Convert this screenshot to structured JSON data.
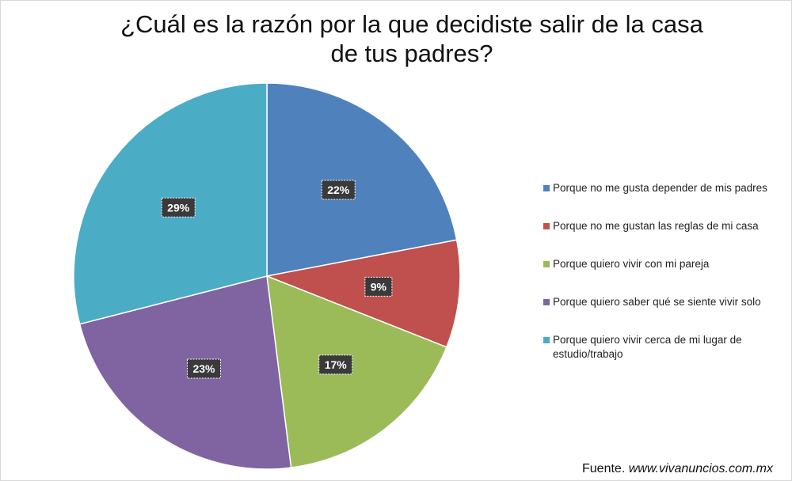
{
  "chart_data": {
    "type": "pie",
    "title_lines": [
      "¿Cuál es la razón por la que decidiste salir de la casa",
      "de tus padres?"
    ],
    "slices": [
      {
        "label": "Porque no me gusta depender de mis padres",
        "value": 22,
        "display": "22%",
        "color": "#4f81bd"
      },
      {
        "label": "Porque no me gustan las reglas de mi casa",
        "value": 9,
        "display": "9%",
        "color": "#c0504d"
      },
      {
        "label": "Porque quiero vivir con mi pareja",
        "value": 17,
        "display": "17%",
        "color": "#9bbb59"
      },
      {
        "label": "Porque quiero saber qué se siente vivir solo",
        "value": 23,
        "display": "23%",
        "color": "#8064a2"
      },
      {
        "label": "Porque quiero vivir cerca de mi lugar de estudio/trabajo",
        "value": 29,
        "display": "29%",
        "color": "#4bacc6"
      }
    ],
    "legend_position": "right",
    "source_prefix": "Fuente.",
    "source_url": "www.vivanuncios.com.mx"
  }
}
